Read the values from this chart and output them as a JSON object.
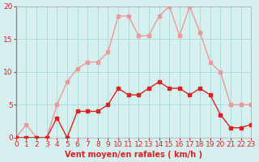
{
  "x": [
    0,
    1,
    2,
    3,
    4,
    5,
    6,
    7,
    8,
    9,
    10,
    11,
    12,
    13,
    14,
    15,
    16,
    17,
    18,
    19,
    20,
    21,
    22,
    23
  ],
  "y_mean": [
    0,
    0,
    0,
    0,
    3,
    0,
    4,
    4,
    4,
    5,
    7.5,
    6.5,
    6.5,
    7.5,
    8.5,
    7.5,
    7.5,
    6.5,
    7.5,
    6.5,
    3.5,
    1.5,
    1.5,
    2
  ],
  "y_gust": [
    0,
    2,
    0,
    0,
    5,
    8.5,
    10.5,
    11.5,
    11.5,
    13,
    18.5,
    18.5,
    15.5,
    15.5,
    18.5,
    20,
    15.5,
    20,
    16,
    11.5,
    10,
    5,
    5,
    5
  ],
  "line_color_mean": "#dd2222",
  "line_color_gust": "#ee9999",
  "marker_color_mean": "#dd2222",
  "marker_color_gust": "#ee9999",
  "bg_color": "#d6f0f0",
  "grid_color": "#aadddd",
  "axis_label_color": "#dd2222",
  "tick_color": "#dd2222",
  "xlabel": "Vent moyen/en rafales ( km/h )",
  "ylabel": "",
  "ylim": [
    0,
    20
  ],
  "xlim": [
    0,
    23
  ],
  "yticks": [
    0,
    5,
    10,
    15,
    20
  ],
  "xticks": [
    0,
    1,
    2,
    3,
    4,
    5,
    6,
    7,
    8,
    9,
    10,
    11,
    12,
    13,
    14,
    15,
    16,
    17,
    18,
    19,
    20,
    21,
    22,
    23
  ],
  "title": "",
  "fontsize_label": 7,
  "fontsize_tick": 6.5
}
